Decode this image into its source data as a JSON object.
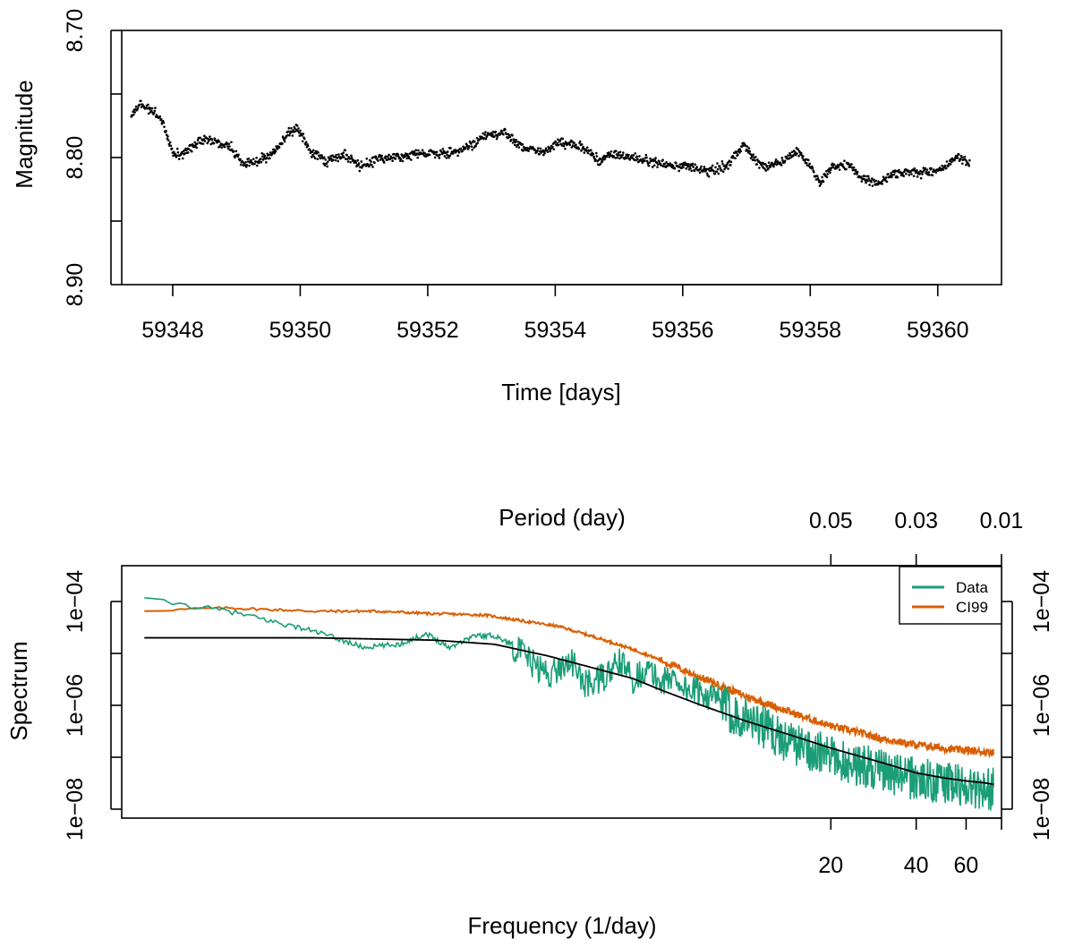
{
  "colors": {
    "data": "#1b9e77",
    "ci99": "#d95f02",
    "model": "#000000",
    "points": "#000000"
  },
  "chart_data": [
    {
      "type": "scatter",
      "xlabel": "Time [days]",
      "ylabel": "Magnitude",
      "xlim": [
        59347.2,
        59361.0
      ],
      "ylim": [
        8.9,
        8.7
      ],
      "y_reversed": true,
      "x_ticks": [
        "59348",
        "59350",
        "59352",
        "59354",
        "59356",
        "59358",
        "59360"
      ],
      "y_ticks": [
        "8.70",
        "8.80",
        "8.90"
      ],
      "y_minor_ticks": [
        8.75,
        8.85
      ],
      "series": [
        {
          "marker": "dot",
          "trend_points": [
            [
              59347.35,
              8.766
            ],
            [
              59347.5,
              8.758
            ],
            [
              59347.65,
              8.762
            ],
            [
              59347.85,
              8.772
            ],
            [
              59348.0,
              8.797
            ],
            [
              59348.2,
              8.797
            ],
            [
              59348.4,
              8.787
            ],
            [
              59348.6,
              8.786
            ],
            [
              59348.9,
              8.791
            ],
            [
              59349.1,
              8.806
            ],
            [
              59349.35,
              8.803
            ],
            [
              59349.6,
              8.795
            ],
            [
              59349.8,
              8.782
            ],
            [
              59349.95,
              8.776
            ],
            [
              59350.15,
              8.795
            ],
            [
              59350.4,
              8.803
            ],
            [
              59350.7,
              8.797
            ],
            [
              59350.95,
              8.808
            ],
            [
              59351.2,
              8.801
            ],
            [
              59351.5,
              8.8
            ],
            [
              59351.8,
              8.797
            ],
            [
              59352.1,
              8.797
            ],
            [
              59352.4,
              8.796
            ],
            [
              59352.7,
              8.79
            ],
            [
              59352.9,
              8.782
            ],
            [
              59353.2,
              8.78
            ],
            [
              59353.5,
              8.792
            ],
            [
              59353.8,
              8.795
            ],
            [
              59354.1,
              8.788
            ],
            [
              59354.4,
              8.791
            ],
            [
              59354.7,
              8.803
            ],
            [
              59354.9,
              8.797
            ],
            [
              59355.2,
              8.8
            ],
            [
              59355.5,
              8.803
            ],
            [
              59355.8,
              8.806
            ],
            [
              59356.1,
              8.807
            ],
            [
              59356.4,
              8.812
            ],
            [
              59356.7,
              8.806
            ],
            [
              59356.95,
              8.79
            ],
            [
              59357.1,
              8.8
            ],
            [
              59357.3,
              8.808
            ],
            [
              59357.55,
              8.804
            ],
            [
              59357.8,
              8.795
            ],
            [
              59358.0,
              8.806
            ],
            [
              59358.15,
              8.82
            ],
            [
              59358.35,
              8.807
            ],
            [
              59358.6,
              8.806
            ],
            [
              59358.8,
              8.815
            ],
            [
              59359.05,
              8.821
            ],
            [
              59359.3,
              8.813
            ],
            [
              59359.6,
              8.811
            ],
            [
              59359.85,
              8.812
            ],
            [
              59360.1,
              8.808
            ],
            [
              59360.3,
              8.8
            ],
            [
              59360.5,
              8.805
            ]
          ]
        }
      ]
    },
    {
      "type": "line",
      "xlabel": "Frequency (1/day)",
      "ylabel": "Spectrum",
      "top_axis_label": "Period (day)",
      "x_scale": "log",
      "y_scale": "log",
      "xlim": [
        0.063,
        80
      ],
      "ylim": [
        1e-08,
        0.0001
      ],
      "x_ticks": [
        20,
        40,
        60
      ],
      "x_tick_labels": [
        "20",
        "40",
        "60"
      ],
      "x_minor_ticks": [
        80
      ],
      "top_ticks": [
        0.05,
        0.03,
        0.01
      ],
      "top_tick_labels": [
        "0.05",
        "0.03",
        "0.01"
      ],
      "y_ticks": [
        1e-08,
        1e-06,
        0.0001
      ],
      "y_tick_labels": [
        "1e−08",
        "1e−06",
        "1e−04"
      ],
      "y_minor_ticks": [
        1e-07,
        1e-05
      ],
      "legend": {
        "position": "top-right",
        "entries": [
          "Data",
          "CI99"
        ]
      },
      "series": [
        {
          "name": "Data",
          "points": [
            [
              0.0757,
              0.00011
            ],
            [
              0.15,
              6.5e-05
            ],
            [
              0.3,
              2.7e-05
            ],
            [
              0.45,
              1.3e-05
            ],
            [
              0.6,
              1.5e-05
            ],
            [
              0.75,
              2.4e-05
            ],
            [
              0.9,
              1.3e-05
            ],
            [
              1.1,
              2.2e-05
            ],
            [
              1.3,
              2.2e-05
            ],
            [
              1.5,
              1.5e-05
            ],
            [
              1.8,
              6e-06
            ],
            [
              2.0,
              4e-06
            ],
            [
              2.2,
              5e-06
            ],
            [
              2.4,
              8e-06
            ],
            [
              2.7,
              2.5e-06
            ],
            [
              3.0,
              3e-06
            ],
            [
              3.3,
              4e-06
            ],
            [
              3.6,
              7e-06
            ],
            [
              4.0,
              3.2e-06
            ],
            [
              4.5,
              5e-06
            ],
            [
              5.0,
              2.8e-06
            ],
            [
              5.6,
              3.5e-06
            ],
            [
              6.2,
              2e-06
            ],
            [
              7.0,
              1.8e-06
            ],
            [
              8.0,
              1.2e-06
            ],
            [
              9.0,
              7e-07
            ],
            [
              10.0,
              6e-07
            ],
            [
              11.5,
              4e-07
            ],
            [
              13.0,
              2.5e-07
            ],
            [
              15.0,
              1.8e-07
            ],
            [
              17.0,
              1.4e-07
            ],
            [
              20.0,
              1e-07
            ],
            [
              23.0,
              8e-08
            ],
            [
              27.0,
              6.5e-08
            ],
            [
              32.0,
              5e-08
            ],
            [
              38.0,
              4e-08
            ],
            [
              45.0,
              3.5e-08
            ],
            [
              55.0,
              3e-08
            ],
            [
              65.0,
              2.6e-08
            ],
            [
              75.0,
              2.4e-08
            ]
          ]
        },
        {
          "name": "CI99",
          "points": [
            [
              0.0757,
              6.7e-05
            ],
            [
              0.15,
              7.5e-05
            ],
            [
              0.3,
              6.5e-05
            ],
            [
              0.5,
              6.5e-05
            ],
            [
              0.8,
              5.8e-05
            ],
            [
              1.2,
              5.5e-05
            ],
            [
              1.6,
              4.3e-05
            ],
            [
              2.2,
              3.3e-05
            ],
            [
              3.0,
              2e-05
            ],
            [
              4.0,
              1.2e-05
            ],
            [
              5.0,
              7.5e-06
            ],
            [
              6.5,
              4e-06
            ],
            [
              8.0,
              2.5e-06
            ],
            [
              10.0,
              1.5e-06
            ],
            [
              13.0,
              9e-07
            ],
            [
              16.0,
              6e-07
            ],
            [
              20.0,
              4e-07
            ],
            [
              25.0,
              3e-07
            ],
            [
              30.0,
              2.3e-07
            ],
            [
              38.0,
              1.8e-07
            ],
            [
              45.0,
              1.6e-07
            ],
            [
              55.0,
              1.4e-07
            ],
            [
              65.0,
              1.3e-07
            ],
            [
              75.0,
              1.25e-07
            ]
          ]
        },
        {
          "name": "",
          "points": [
            [
              0.0757,
              2e-05
            ],
            [
              0.3,
              2e-05
            ],
            [
              0.8,
              1.8e-05
            ],
            [
              1.3,
              1.5e-05
            ],
            [
              2.0,
              9e-06
            ],
            [
              3.0,
              5e-06
            ],
            [
              4.0,
              3.3e-06
            ],
            [
              5.0,
              2e-06
            ],
            [
              7.0,
              1e-06
            ],
            [
              10.0,
              5e-07
            ],
            [
              15.0,
              2.5e-07
            ],
            [
              20.0,
              1.5e-07
            ],
            [
              30.0,
              8e-08
            ],
            [
              40.0,
              5e-08
            ],
            [
              50.0,
              4e-08
            ],
            [
              60.0,
              3.5e-08
            ],
            [
              70.0,
              3.2e-08
            ],
            [
              75.0,
              3e-08
            ]
          ]
        }
      ]
    }
  ]
}
